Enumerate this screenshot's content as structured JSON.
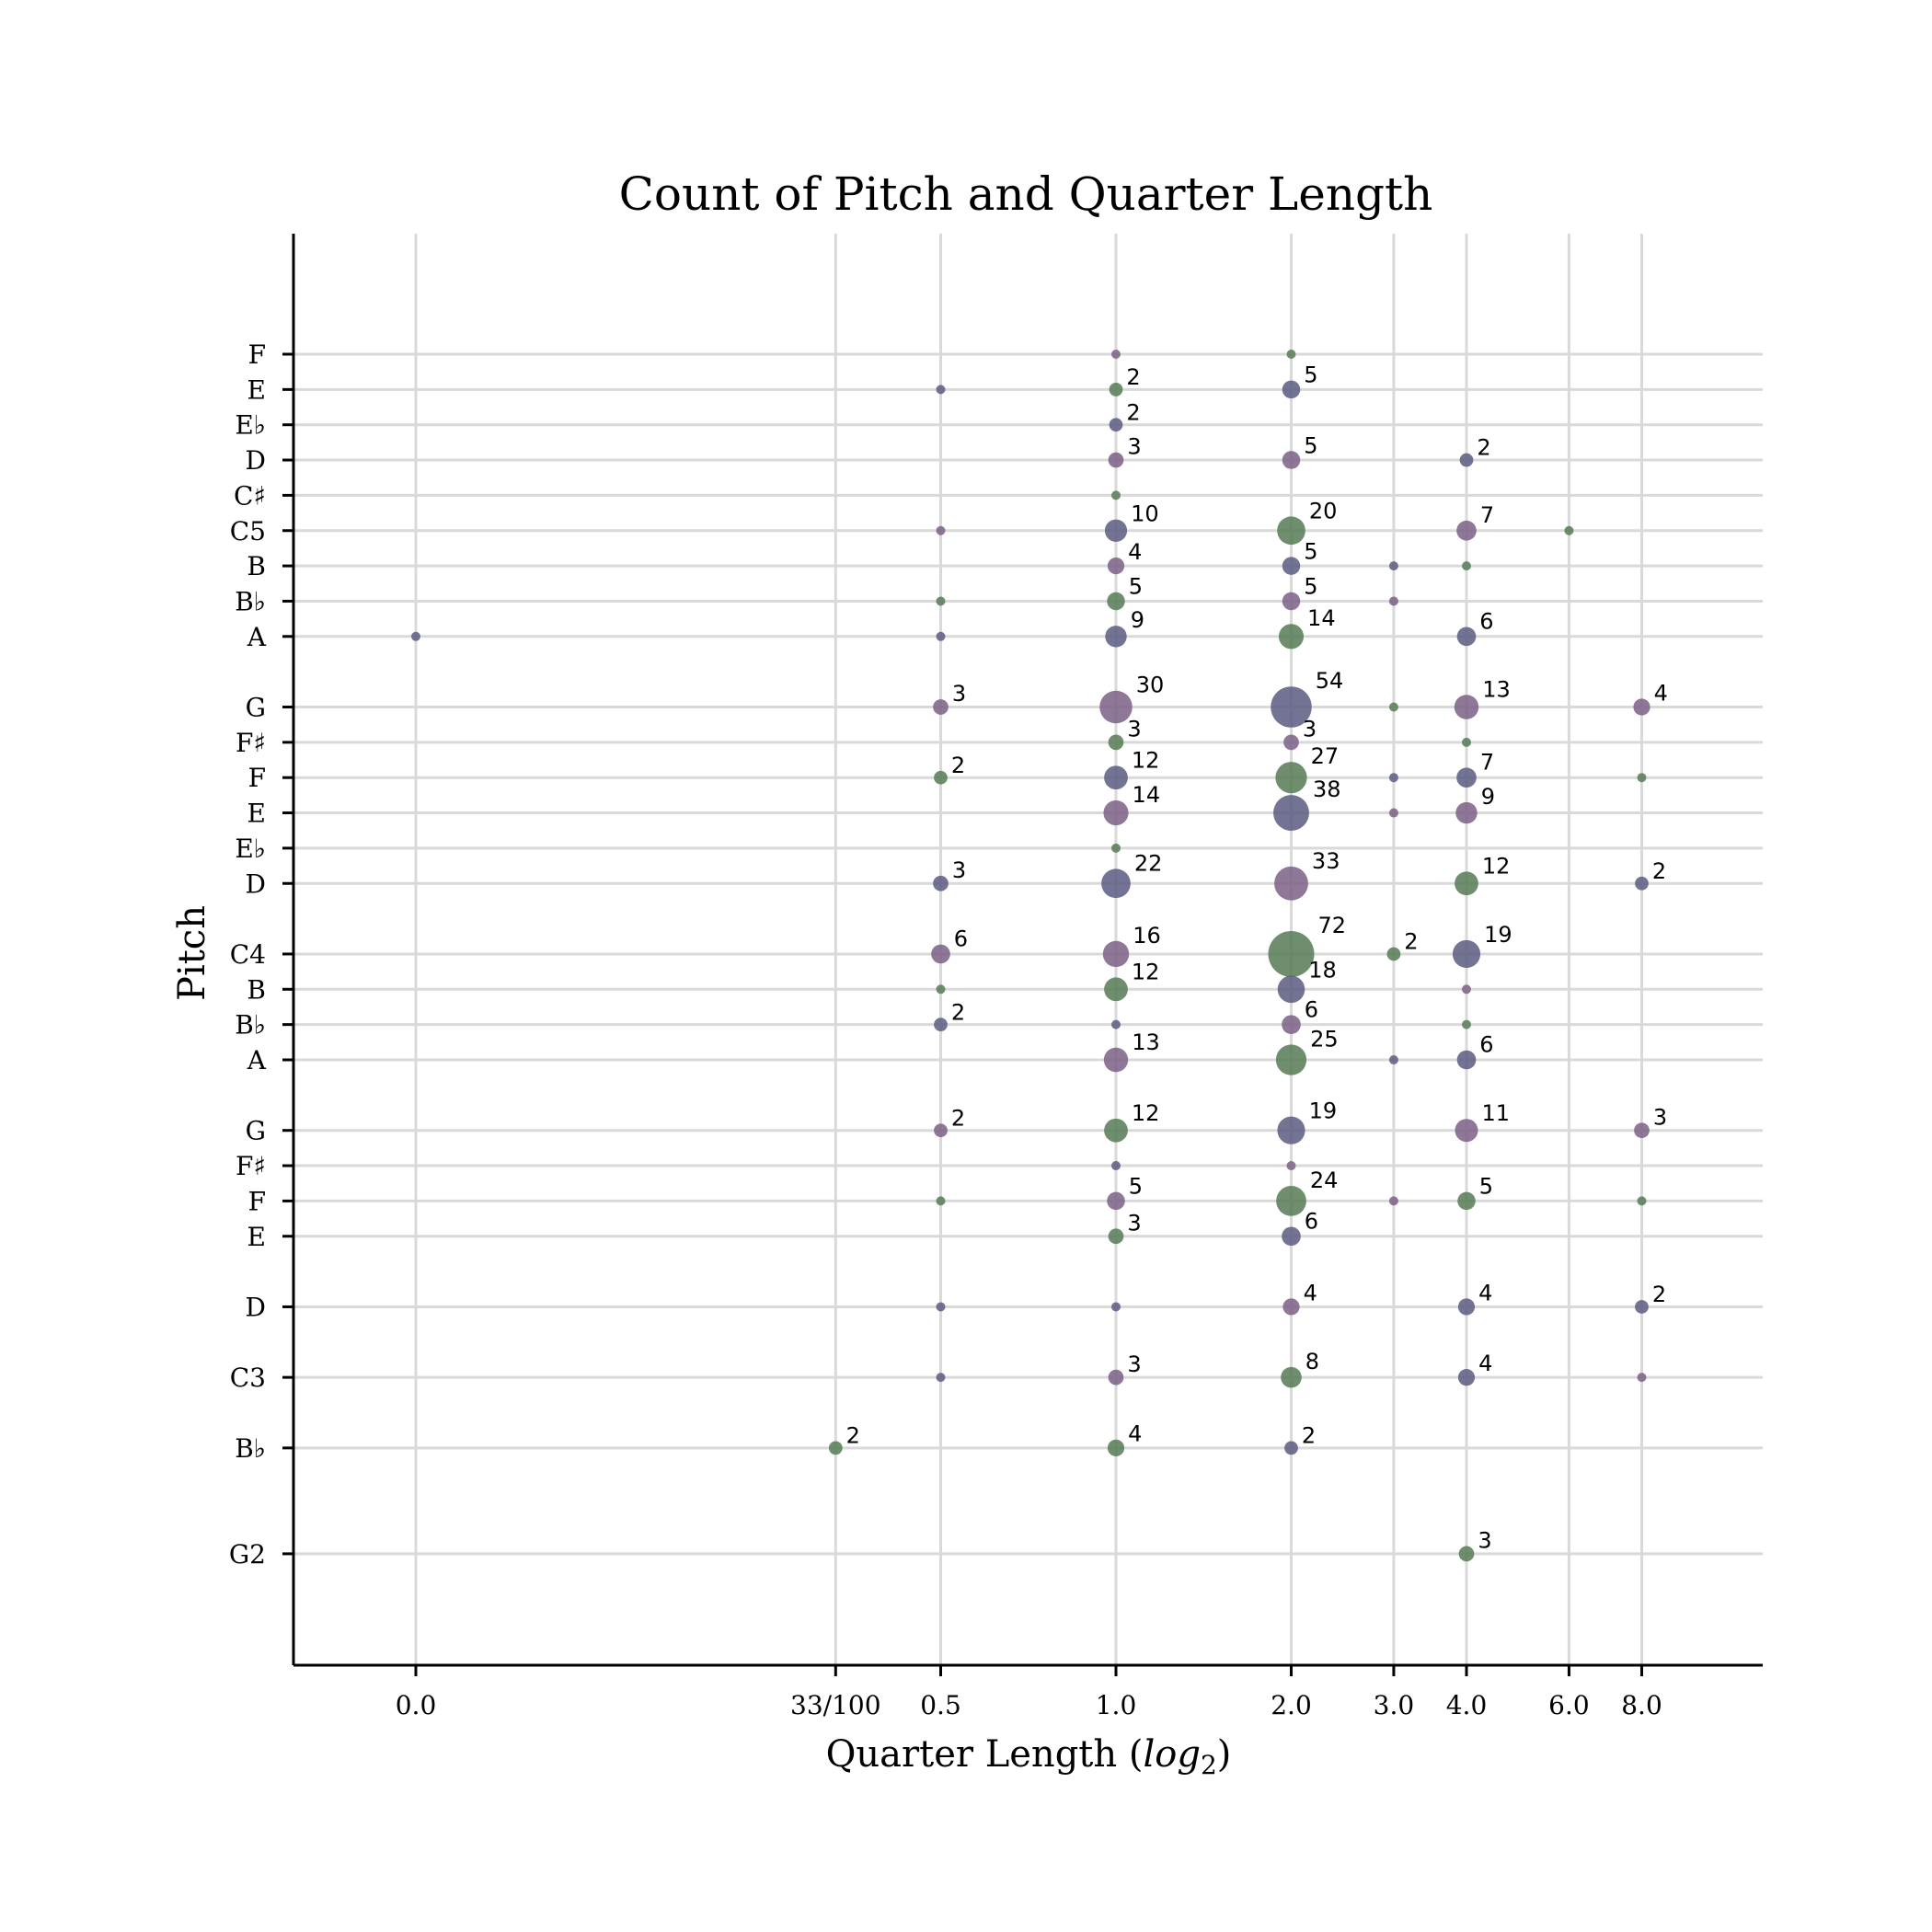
{
  "chart_data": {
    "type": "scatter",
    "title": "Count of Pitch and Quarter Length",
    "xlabel": "Quarter Length (",
    "xlabel_italic": "log",
    "xlabel_sub": "2",
    "xlabel_close": ")",
    "ylabel": "Pitch",
    "x_scale": "log2",
    "grid": true,
    "colors": {
      "green": "#557a55",
      "purple": "#7a5f85",
      "navy": "#5a5a80",
      "grid": "#d9d9d9"
    },
    "x_ticks": [
      {
        "label": "0.0",
        "value": 0.0
      },
      {
        "label": "33/100",
        "value": 0.33
      },
      {
        "label": "0.5",
        "value": 0.5
      },
      {
        "label": "1.0",
        "value": 1.0
      },
      {
        "label": "2.0",
        "value": 2.0
      },
      {
        "label": "3.0",
        "value": 3.0
      },
      {
        "label": "4.0",
        "value": 4.0
      },
      {
        "label": "6.0",
        "value": 6.0
      },
      {
        "label": "8.0",
        "value": 8.0
      }
    ],
    "y_ticks": [
      {
        "label": "F",
        "midi": 77
      },
      {
        "label": "E",
        "midi": 76
      },
      {
        "label": "E♭",
        "midi": 75
      },
      {
        "label": "D",
        "midi": 74
      },
      {
        "label": "C♯",
        "midi": 73
      },
      {
        "label": "C5",
        "midi": 72
      },
      {
        "label": "B",
        "midi": 71
      },
      {
        "label": "B♭",
        "midi": 70
      },
      {
        "label": "A",
        "midi": 69
      },
      {
        "label": "G",
        "midi": 67
      },
      {
        "label": "F♯",
        "midi": 66
      },
      {
        "label": "F",
        "midi": 65
      },
      {
        "label": "E",
        "midi": 64
      },
      {
        "label": "E♭",
        "midi": 63
      },
      {
        "label": "D",
        "midi": 62
      },
      {
        "label": "C4",
        "midi": 60
      },
      {
        "label": "B",
        "midi": 59
      },
      {
        "label": "B♭",
        "midi": 58
      },
      {
        "label": "A",
        "midi": 57
      },
      {
        "label": "G",
        "midi": 55
      },
      {
        "label": "F♯",
        "midi": 54
      },
      {
        "label": "F",
        "midi": 53
      },
      {
        "label": "E",
        "midi": 52
      },
      {
        "label": "D",
        "midi": 50
      },
      {
        "label": "C3",
        "midi": 48
      },
      {
        "label": "B♭",
        "midi": 46
      },
      {
        "label": "G2",
        "midi": 43
      }
    ],
    "points": [
      {
        "x": 1.0,
        "y": 77,
        "count": 1,
        "color": "purple"
      },
      {
        "x": 2.0,
        "y": 77,
        "count": 1,
        "color": "green"
      },
      {
        "x": 0.5,
        "y": 76,
        "count": 1,
        "color": "navy"
      },
      {
        "x": 1.0,
        "y": 76,
        "count": 2,
        "color": "green",
        "label": "2"
      },
      {
        "x": 2.0,
        "y": 76,
        "count": 5,
        "color": "navy",
        "label": "5"
      },
      {
        "x": 1.0,
        "y": 75,
        "count": 2,
        "color": "navy",
        "label": "2"
      },
      {
        "x": 1.0,
        "y": 74,
        "count": 3,
        "color": "purple",
        "label": "3"
      },
      {
        "x": 2.0,
        "y": 74,
        "count": 5,
        "color": "purple",
        "label": "5"
      },
      {
        "x": 4.0,
        "y": 74,
        "count": 2,
        "color": "navy",
        "label": "2"
      },
      {
        "x": 1.0,
        "y": 73,
        "count": 1,
        "color": "green"
      },
      {
        "x": 0.5,
        "y": 72,
        "count": 1,
        "color": "purple"
      },
      {
        "x": 1.0,
        "y": 72,
        "count": 10,
        "color": "navy",
        "label": "10"
      },
      {
        "x": 2.0,
        "y": 72,
        "count": 20,
        "color": "green",
        "label": "20"
      },
      {
        "x": 4.0,
        "y": 72,
        "count": 7,
        "color": "purple",
        "label": "7"
      },
      {
        "x": 6.0,
        "y": 72,
        "count": 1,
        "color": "green"
      },
      {
        "x": 1.0,
        "y": 71,
        "count": 4,
        "color": "purple",
        "label": "4"
      },
      {
        "x": 2.0,
        "y": 71,
        "count": 5,
        "color": "navy",
        "label": "5"
      },
      {
        "x": 3.0,
        "y": 71,
        "count": 1,
        "color": "navy"
      },
      {
        "x": 4.0,
        "y": 71,
        "count": 1,
        "color": "green"
      },
      {
        "x": 0.5,
        "y": 70,
        "count": 1,
        "color": "green"
      },
      {
        "x": 1.0,
        "y": 70,
        "count": 5,
        "color": "green",
        "label": "5"
      },
      {
        "x": 2.0,
        "y": 70,
        "count": 5,
        "color": "purple",
        "label": "5"
      },
      {
        "x": 3.0,
        "y": 70,
        "count": 1,
        "color": "purple"
      },
      {
        "x": 0.0,
        "y": 69,
        "count": 1,
        "color": "navy"
      },
      {
        "x": 0.5,
        "y": 69,
        "count": 1,
        "color": "navy"
      },
      {
        "x": 1.0,
        "y": 69,
        "count": 9,
        "color": "navy",
        "label": "9"
      },
      {
        "x": 2.0,
        "y": 69,
        "count": 14,
        "color": "green",
        "label": "14"
      },
      {
        "x": 4.0,
        "y": 69,
        "count": 6,
        "color": "navy",
        "label": "6"
      },
      {
        "x": 0.5,
        "y": 67,
        "count": 3,
        "color": "purple",
        "label": "3"
      },
      {
        "x": 1.0,
        "y": 67,
        "count": 30,
        "color": "purple",
        "label": "30"
      },
      {
        "x": 2.0,
        "y": 67,
        "count": 54,
        "color": "navy",
        "label": "54"
      },
      {
        "x": 3.0,
        "y": 67,
        "count": 1,
        "color": "green"
      },
      {
        "x": 4.0,
        "y": 67,
        "count": 13,
        "color": "purple",
        "label": "13"
      },
      {
        "x": 8.0,
        "y": 67,
        "count": 4,
        "color": "purple",
        "label": "4"
      },
      {
        "x": 1.0,
        "y": 66,
        "count": 3,
        "color": "green",
        "label": "3"
      },
      {
        "x": 2.0,
        "y": 66,
        "count": 3,
        "color": "purple",
        "label": "3"
      },
      {
        "x": 4.0,
        "y": 66,
        "count": 1,
        "color": "green"
      },
      {
        "x": 0.5,
        "y": 65,
        "count": 2,
        "color": "green",
        "label": "2"
      },
      {
        "x": 1.0,
        "y": 65,
        "count": 12,
        "color": "navy",
        "label": "12"
      },
      {
        "x": 2.0,
        "y": 65,
        "count": 27,
        "color": "green",
        "label": "27"
      },
      {
        "x": 3.0,
        "y": 65,
        "count": 1,
        "color": "navy"
      },
      {
        "x": 4.0,
        "y": 65,
        "count": 7,
        "color": "navy",
        "label": "7"
      },
      {
        "x": 8.0,
        "y": 65,
        "count": 1,
        "color": "green"
      },
      {
        "x": 1.0,
        "y": 64,
        "count": 14,
        "color": "purple",
        "label": "14"
      },
      {
        "x": 2.0,
        "y": 64,
        "count": 38,
        "color": "navy",
        "label": "38"
      },
      {
        "x": 3.0,
        "y": 64,
        "count": 1,
        "color": "purple"
      },
      {
        "x": 4.0,
        "y": 64,
        "count": 9,
        "color": "purple",
        "label": "9"
      },
      {
        "x": 1.0,
        "y": 63,
        "count": 1,
        "color": "green"
      },
      {
        "x": 0.5,
        "y": 62,
        "count": 3,
        "color": "navy",
        "label": "3"
      },
      {
        "x": 1.0,
        "y": 62,
        "count": 22,
        "color": "navy",
        "label": "22"
      },
      {
        "x": 2.0,
        "y": 62,
        "count": 33,
        "color": "purple",
        "label": "33"
      },
      {
        "x": 4.0,
        "y": 62,
        "count": 12,
        "color": "green",
        "label": "12"
      },
      {
        "x": 8.0,
        "y": 62,
        "count": 2,
        "color": "navy",
        "label": "2"
      },
      {
        "x": 0.5,
        "y": 60,
        "count": 6,
        "color": "purple",
        "label": "6"
      },
      {
        "x": 1.0,
        "y": 60,
        "count": 16,
        "color": "purple",
        "label": "16"
      },
      {
        "x": 2.0,
        "y": 60,
        "count": 72,
        "color": "green",
        "label": "72"
      },
      {
        "x": 3.0,
        "y": 60,
        "count": 2,
        "color": "green",
        "label": "2"
      },
      {
        "x": 4.0,
        "y": 60,
        "count": 19,
        "color": "navy",
        "label": "19"
      },
      {
        "x": 0.5,
        "y": 59,
        "count": 1,
        "color": "green"
      },
      {
        "x": 1.0,
        "y": 59,
        "count": 12,
        "color": "green",
        "label": "12"
      },
      {
        "x": 2.0,
        "y": 59,
        "count": 18,
        "color": "navy",
        "label": "18"
      },
      {
        "x": 4.0,
        "y": 59,
        "count": 1,
        "color": "purple"
      },
      {
        "x": 0.5,
        "y": 58,
        "count": 2,
        "color": "navy",
        "label": "2"
      },
      {
        "x": 1.0,
        "y": 58,
        "count": 1,
        "color": "navy"
      },
      {
        "x": 2.0,
        "y": 58,
        "count": 6,
        "color": "purple",
        "label": "6"
      },
      {
        "x": 4.0,
        "y": 58,
        "count": 1,
        "color": "green"
      },
      {
        "x": 1.0,
        "y": 57,
        "count": 13,
        "color": "purple",
        "label": "13"
      },
      {
        "x": 2.0,
        "y": 57,
        "count": 25,
        "color": "green",
        "label": "25"
      },
      {
        "x": 3.0,
        "y": 57,
        "count": 1,
        "color": "navy"
      },
      {
        "x": 4.0,
        "y": 57,
        "count": 6,
        "color": "navy",
        "label": "6"
      },
      {
        "x": 0.5,
        "y": 55,
        "count": 2,
        "color": "purple",
        "label": "2"
      },
      {
        "x": 1.0,
        "y": 55,
        "count": 12,
        "color": "green",
        "label": "12"
      },
      {
        "x": 2.0,
        "y": 55,
        "count": 19,
        "color": "navy",
        "label": "19"
      },
      {
        "x": 4.0,
        "y": 55,
        "count": 11,
        "color": "purple",
        "label": "11"
      },
      {
        "x": 8.0,
        "y": 55,
        "count": 3,
        "color": "purple",
        "label": "3"
      },
      {
        "x": 1.0,
        "y": 54,
        "count": 1,
        "color": "navy"
      },
      {
        "x": 2.0,
        "y": 54,
        "count": 1,
        "color": "purple"
      },
      {
        "x": 0.5,
        "y": 53,
        "count": 1,
        "color": "green"
      },
      {
        "x": 1.0,
        "y": 53,
        "count": 5,
        "color": "purple",
        "label": "5"
      },
      {
        "x": 2.0,
        "y": 53,
        "count": 24,
        "color": "green",
        "label": "24"
      },
      {
        "x": 3.0,
        "y": 53,
        "count": 1,
        "color": "purple"
      },
      {
        "x": 4.0,
        "y": 53,
        "count": 5,
        "color": "green",
        "label": "5"
      },
      {
        "x": 8.0,
        "y": 53,
        "count": 1,
        "color": "green"
      },
      {
        "x": 1.0,
        "y": 52,
        "count": 3,
        "color": "green",
        "label": "3"
      },
      {
        "x": 2.0,
        "y": 52,
        "count": 6,
        "color": "navy",
        "label": "6"
      },
      {
        "x": 0.5,
        "y": 50,
        "count": 1,
        "color": "navy"
      },
      {
        "x": 1.0,
        "y": 50,
        "count": 1,
        "color": "navy"
      },
      {
        "x": 2.0,
        "y": 50,
        "count": 4,
        "color": "purple",
        "label": "4"
      },
      {
        "x": 4.0,
        "y": 50,
        "count": 4,
        "color": "navy",
        "label": "4"
      },
      {
        "x": 8.0,
        "y": 50,
        "count": 2,
        "color": "navy",
        "label": "2"
      },
      {
        "x": 0.5,
        "y": 48,
        "count": 1,
        "color": "navy"
      },
      {
        "x": 1.0,
        "y": 48,
        "count": 3,
        "color": "purple",
        "label": "3"
      },
      {
        "x": 2.0,
        "y": 48,
        "count": 8,
        "color": "green",
        "label": "8"
      },
      {
        "x": 4.0,
        "y": 48,
        "count": 4,
        "color": "navy",
        "label": "4"
      },
      {
        "x": 8.0,
        "y": 48,
        "count": 1,
        "color": "purple"
      },
      {
        "x": 0.33,
        "y": 46,
        "count": 2,
        "color": "green",
        "label": "2"
      },
      {
        "x": 1.0,
        "y": 46,
        "count": 4,
        "color": "green",
        "label": "4"
      },
      {
        "x": 2.0,
        "y": 46,
        "count": 2,
        "color": "navy",
        "label": "2"
      },
      {
        "x": 4.0,
        "y": 43,
        "count": 3,
        "color": "green",
        "label": "3"
      }
    ]
  }
}
